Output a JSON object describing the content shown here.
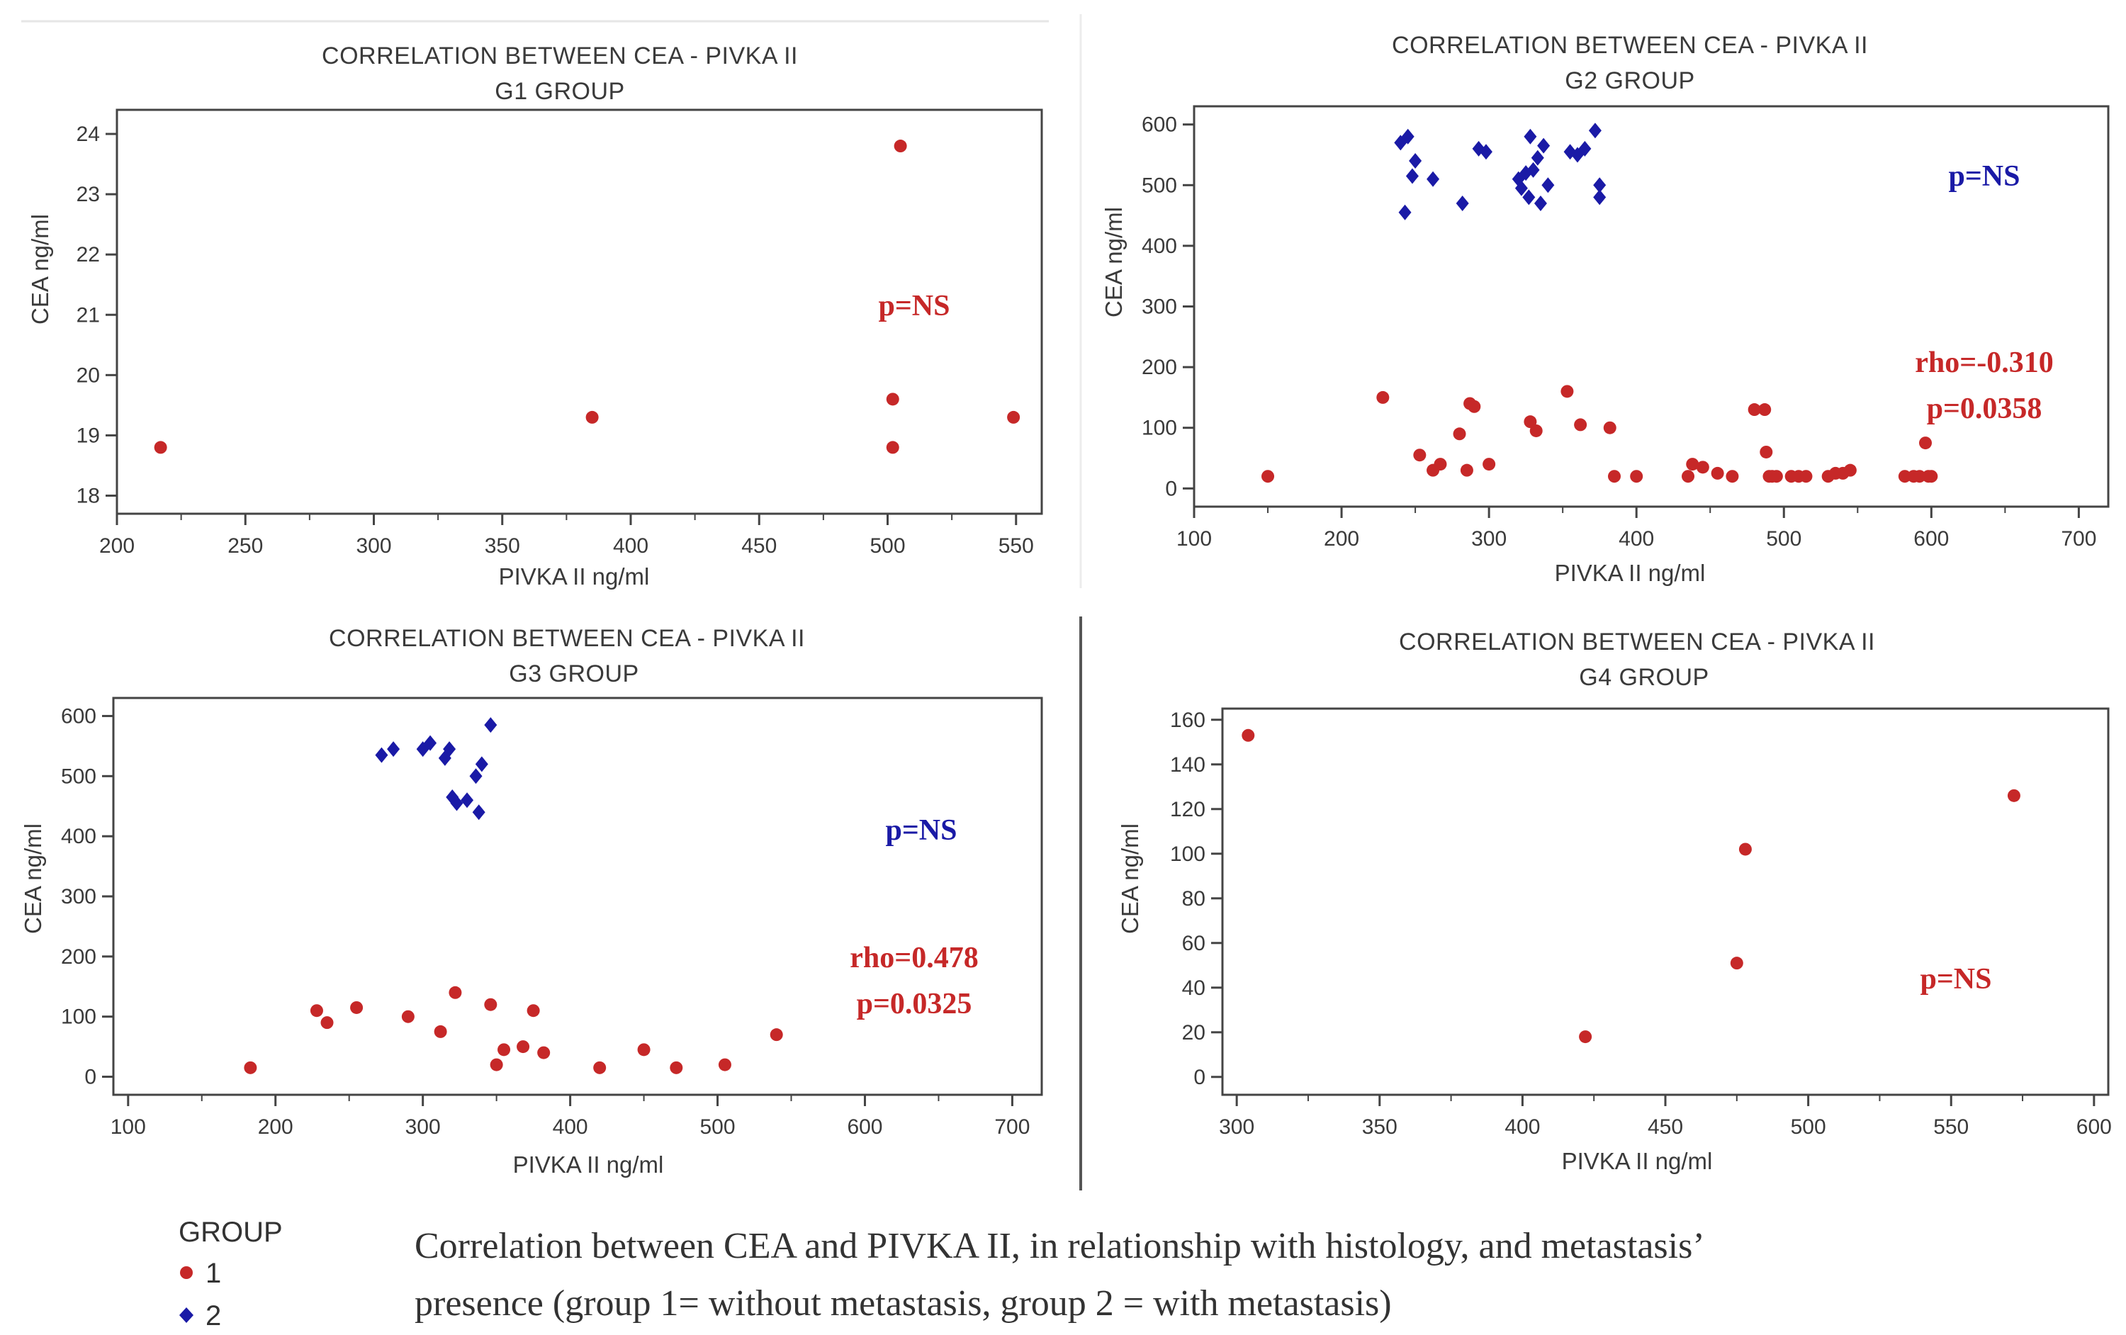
{
  "colors": {
    "group1": "#c62828",
    "group2": "#1a1aa6",
    "frame": "#444444",
    "text": "#3a3a3a"
  },
  "legend": {
    "title": "GROUP",
    "items": [
      {
        "label": "1",
        "marker": "circle",
        "color": "#c62828"
      },
      {
        "label": "2",
        "marker": "diamond",
        "color": "#1a1aa6"
      }
    ]
  },
  "caption": {
    "line1": "Correlation between CEA and PIVKA II, in relationship with histology, and metastasis’",
    "line2": "presence (group 1= without metastasis, group 2 = with metastasis)"
  },
  "chart_data": [
    {
      "type": "scatter",
      "title": "CORRELATION BETWEEN CEA - PIVKA II",
      "subtitle": "G1 GROUP",
      "xlabel": "PIVKA II ng/ml",
      "ylabel": "CEA ng/ml",
      "xlim": [
        200,
        560
      ],
      "ylim": [
        17.7,
        24.4
      ],
      "xticks": [
        200,
        250,
        300,
        350,
        400,
        450,
        500,
        550
      ],
      "yticks": [
        18,
        19,
        20,
        21,
        22,
        23,
        24
      ],
      "series": [
        {
          "name": "1",
          "x": [
            217,
            385,
            502,
            502,
            505,
            549
          ],
          "y": [
            18.8,
            19.3,
            19.6,
            18.8,
            23.8,
            19.3
          ]
        }
      ],
      "annotations": [
        {
          "text": "p=NS",
          "color": "#c62828"
        }
      ]
    },
    {
      "type": "scatter",
      "title": "CORRELATION BETWEEN CEA - PIVKA II",
      "subtitle": "G2 GROUP",
      "xlabel": "PIVKA II ng/ml",
      "ylabel": "CEA ng/ml",
      "xlim": [
        100,
        720
      ],
      "ylim": [
        -30,
        630
      ],
      "xticks": [
        100,
        200,
        300,
        400,
        500,
        600,
        700
      ],
      "yticks": [
        0,
        100,
        200,
        300,
        400,
        500,
        600
      ],
      "series": [
        {
          "name": "1",
          "x": [
            150,
            228,
            253,
            262,
            267,
            280,
            285,
            287,
            290,
            300,
            328,
            332,
            353,
            362,
            382,
            385,
            400,
            435,
            438,
            445,
            455,
            465,
            480,
            487,
            488,
            490,
            492,
            495,
            505,
            510,
            515,
            530,
            535,
            540,
            545,
            582,
            588,
            592,
            596,
            598,
            600
          ],
          "y": [
            20,
            150,
            55,
            30,
            40,
            90,
            30,
            140,
            135,
            40,
            110,
            95,
            160,
            105,
            100,
            20,
            20,
            20,
            40,
            35,
            25,
            20,
            130,
            130,
            60,
            20,
            20,
            20,
            20,
            20,
            20,
            20,
            25,
            25,
            30,
            20,
            20,
            20,
            75,
            20,
            20
          ]
        },
        {
          "name": "2",
          "x": [
            240,
            243,
            245,
            248,
            250,
            262,
            282,
            293,
            298,
            320,
            322,
            325,
            327,
            328,
            330,
            333,
            335,
            337,
            340,
            355,
            360,
            365,
            372,
            375,
            375
          ],
          "y": [
            570,
            455,
            580,
            515,
            540,
            510,
            470,
            560,
            555,
            510,
            495,
            520,
            480,
            580,
            525,
            545,
            470,
            565,
            500,
            555,
            550,
            560,
            590,
            500,
            480
          ]
        }
      ],
      "annotations": [
        {
          "text": "p=NS",
          "color": "#1a1aa6"
        },
        {
          "text": "rho=-0.310",
          "color": "#c62828"
        },
        {
          "text": "p=0.0358",
          "color": "#c62828"
        }
      ]
    },
    {
      "type": "scatter",
      "title": "CORRELATION BETWEEN CEA - PIVKA II",
      "subtitle": "G3  GROUP",
      "xlabel": "PIVKA II ng/ml",
      "ylabel": "CEA ng/ml",
      "xlim": [
        90,
        720
      ],
      "ylim": [
        -30,
        630
      ],
      "xticks": [
        100,
        200,
        300,
        400,
        500,
        600,
        700
      ],
      "yticks": [
        0,
        100,
        200,
        300,
        400,
        500,
        600
      ],
      "series": [
        {
          "name": "1",
          "x": [
            183,
            228,
            235,
            255,
            290,
            312,
            322,
            346,
            350,
            355,
            368,
            375,
            382,
            420,
            450,
            472,
            505,
            540
          ],
          "y": [
            15,
            110,
            90,
            115,
            100,
            75,
            140,
            120,
            20,
            45,
            50,
            110,
            40,
            15,
            45,
            15,
            20,
            70
          ]
        },
        {
          "name": "2",
          "x": [
            272,
            280,
            300,
            305,
            315,
            318,
            320,
            323,
            330,
            336,
            338,
            340,
            346
          ],
          "y": [
            535,
            545,
            545,
            555,
            530,
            545,
            465,
            455,
            460,
            500,
            440,
            520,
            585
          ]
        }
      ],
      "annotations": [
        {
          "text": "p=NS",
          "color": "#1a1aa6"
        },
        {
          "text": "rho=0.478",
          "color": "#c62828"
        },
        {
          "text": "p=0.0325",
          "color": "#c62828"
        }
      ]
    },
    {
      "type": "scatter",
      "title": "CORRELATION BETWEEN CEA - PIVKA II",
      "subtitle": "G4  GROUP",
      "xlabel": "PIVKA II ng/ml",
      "ylabel": "CEA ng/ml",
      "xlim": [
        295,
        605
      ],
      "ylim": [
        -8,
        165
      ],
      "xticks": [
        300,
        350,
        400,
        450,
        500,
        550,
        600
      ],
      "yticks": [
        0,
        20,
        40,
        60,
        80,
        100,
        120,
        140,
        160
      ],
      "series": [
        {
          "name": "1",
          "x": [
            304,
            422,
            475,
            478,
            572
          ],
          "y": [
            153,
            18,
            51,
            102,
            126
          ]
        }
      ],
      "annotations": [
        {
          "text": "p=NS",
          "color": "#c62828"
        }
      ]
    }
  ]
}
